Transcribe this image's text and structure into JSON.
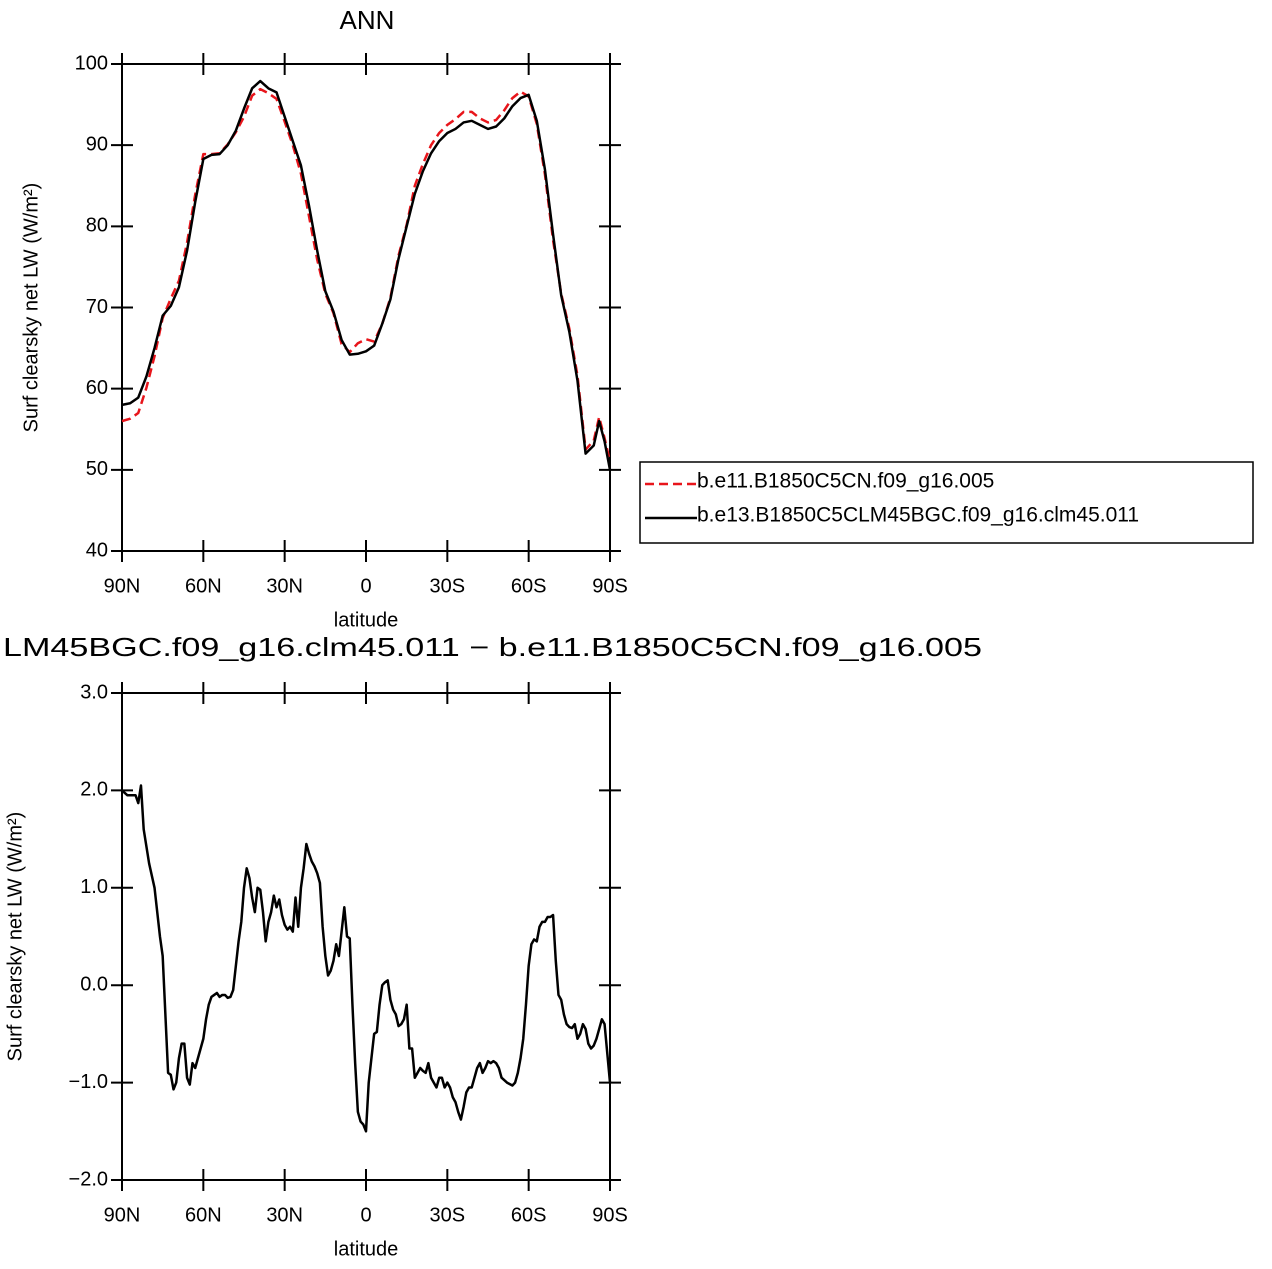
{
  "chart_data": [
    {
      "type": "line",
      "title": "ANN",
      "xlabel": "latitude",
      "ylabel": "Surf clearsky net LW (W/m²)",
      "x": [
        90,
        87,
        84,
        81,
        78,
        75,
        72,
        69,
        66,
        63,
        60,
        57,
        54,
        51,
        48,
        45,
        42,
        39,
        36,
        33,
        30,
        27,
        24,
        21,
        18,
        15,
        12,
        9,
        6,
        3,
        0,
        -3,
        -6,
        -9,
        -12,
        -15,
        -18,
        -21,
        -24,
        -27,
        -30,
        -33,
        -36,
        -39,
        -42,
        -45,
        -48,
        -51,
        -54,
        -57,
        -60,
        -63,
        -66,
        -69,
        -72,
        -75,
        -78,
        -81,
        -84,
        -86,
        -88,
        -90
      ],
      "series": [
        {
          "name": "b.e11.B1850C5CN.f09_g16.005",
          "color": "#e8151b",
          "linestyle": "dashed",
          "values": [
            56.0,
            56.3,
            57.0,
            60.1,
            64.0,
            68.7,
            71.1,
            73.3,
            78.0,
            83.9,
            88.9,
            88.9,
            89.0,
            90.1,
            91.6,
            93.5,
            96.1,
            96.9,
            96.4,
            95.7,
            92.9,
            90.0,
            86.5,
            81.2,
            75.9,
            71.7,
            69.3,
            65.5,
            64.5,
            65.6,
            66.1,
            65.8,
            68.0,
            71.2,
            76.4,
            80.2,
            85.0,
            87.7,
            90.0,
            91.5,
            92.5,
            93.2,
            94.1,
            94.1,
            93.3,
            92.8,
            93.1,
            94.3,
            95.8,
            96.6,
            96.0,
            92.6,
            86.4,
            78.3,
            71.7,
            67.4,
            61.6,
            52.5,
            53.6,
            56.5,
            53.9,
            51.0
          ]
        },
        {
          "name": "b.e13.B1850C5CLM45BGC.f09_g16.clm45.011",
          "color": "#000000",
          "linestyle": "solid",
          "values": [
            58.0,
            58.2,
            58.9,
            61.5,
            65.0,
            69.0,
            70.2,
            72.5,
            77.0,
            83.0,
            88.3,
            88.8,
            88.9,
            90.0,
            91.8,
            94.5,
            97.0,
            97.9,
            97.0,
            96.5,
            93.5,
            90.5,
            87.5,
            82.5,
            77.0,
            72.0,
            69.5,
            66.0,
            64.2,
            64.3,
            64.6,
            65.3,
            68.0,
            71.0,
            76.0,
            80.0,
            84.0,
            86.8,
            89.0,
            90.5,
            91.5,
            92.0,
            92.8,
            93.0,
            92.5,
            92.0,
            92.3,
            93.3,
            94.8,
            95.8,
            96.2,
            93.0,
            87.0,
            79.0,
            71.5,
            67.0,
            61.0,
            52.0,
            53.0,
            56.0,
            53.5,
            50.0
          ]
        }
      ],
      "xlim": [
        90,
        -90
      ],
      "xticks": [
        {
          "value": 90,
          "label": "90N"
        },
        {
          "value": 60,
          "label": "60N"
        },
        {
          "value": 30,
          "label": "30N"
        },
        0,
        {
          "value": -30,
          "label": "30S"
        },
        {
          "value": -60,
          "label": "60S"
        },
        {
          "value": -90,
          "label": "90S"
        }
      ],
      "ylim": [
        40,
        100
      ],
      "yticks": [
        40,
        50,
        60,
        70,
        80,
        90,
        100
      ],
      "legend": "right"
    },
    {
      "type": "line",
      "title": "LM45BGC.f09_g16.clm45.011 − b.e11.B1850C5CN.f09_g16.005",
      "xlabel": "latitude",
      "ylabel": "Surf clearsky net LW (W/m²)",
      "x": [
        90,
        88,
        86,
        85,
        84,
        83,
        82,
        80,
        78,
        76,
        75,
        74,
        73,
        72,
        71,
        70,
        69,
        68,
        67,
        66,
        65,
        64,
        63,
        62,
        61,
        60,
        59,
        58,
        57,
        56,
        55,
        54,
        53,
        52,
        51,
        50,
        49,
        48,
        47,
        46,
        45,
        44,
        43,
        42,
        41,
        40,
        39,
        38,
        37,
        36,
        35,
        34,
        33,
        32,
        31,
        30,
        29,
        28,
        27,
        26,
        25,
        24,
        23,
        22,
        21,
        20,
        19,
        18,
        17,
        16,
        15,
        14,
        13,
        12,
        11,
        10,
        9,
        8,
        7,
        6,
        5,
        4,
        3,
        2,
        1,
        0,
        -1,
        -2,
        -3,
        -4,
        -5,
        -6,
        -7,
        -8,
        -9,
        -10,
        -11,
        -12,
        -13,
        -14,
        -15,
        -16,
        -17,
        -18,
        -19,
        -20,
        -21,
        -22,
        -23,
        -24,
        -25,
        -26,
        -27,
        -28,
        -29,
        -30,
        -31,
        -32,
        -33,
        -34,
        -35,
        -36,
        -37,
        -38,
        -39,
        -40,
        -41,
        -42,
        -43,
        -44,
        -45,
        -46,
        -47,
        -48,
        -49,
        -50,
        -52,
        -54,
        -55,
        -56,
        -57,
        -58,
        -59,
        -60,
        -61,
        -62,
        -63,
        -64,
        -65,
        -66,
        -67,
        -68,
        -69,
        -70,
        -71,
        -72,
        -73,
        -74,
        -75,
        -76,
        -77,
        -78,
        -79,
        -80,
        -81,
        -82,
        -83,
        -84,
        -85,
        -86,
        -87,
        -88,
        -89,
        -90
      ],
      "series": [
        {
          "color": "#000000",
          "linestyle": "solid",
          "values": [
            2.0,
            1.95,
            1.95,
            1.95,
            1.87,
            2.05,
            1.6,
            1.25,
            1.0,
            0.5,
            0.3,
            -0.3,
            -0.9,
            -0.92,
            -1.07,
            -1.0,
            -0.75,
            -0.6,
            -0.6,
            -0.95,
            -1.02,
            -0.8,
            -0.85,
            -0.75,
            -0.65,
            -0.55,
            -0.35,
            -0.2,
            -0.12,
            -0.1,
            -0.08,
            -0.12,
            -0.1,
            -0.1,
            -0.13,
            -0.12,
            -0.05,
            0.2,
            0.45,
            0.65,
            1.0,
            1.2,
            1.1,
            0.9,
            0.75,
            1.0,
            0.98,
            0.75,
            0.45,
            0.65,
            0.75,
            0.92,
            0.8,
            0.88,
            0.72,
            0.62,
            0.57,
            0.6,
            0.55,
            0.9,
            0.6,
            1.0,
            1.2,
            1.45,
            1.35,
            1.27,
            1.22,
            1.15,
            1.05,
            0.6,
            0.3,
            0.1,
            0.15,
            0.25,
            0.42,
            0.3,
            0.55,
            0.8,
            0.5,
            0.48,
            -0.2,
            -0.8,
            -1.3,
            -1.4,
            -1.43,
            -1.5,
            -1.0,
            -0.75,
            -0.5,
            -0.48,
            -0.2,
            0.0,
            0.03,
            0.05,
            -0.15,
            -0.25,
            -0.3,
            -0.42,
            -0.4,
            -0.35,
            -0.2,
            -0.65,
            -0.65,
            -0.95,
            -0.9,
            -0.85,
            -0.88,
            -0.9,
            -0.8,
            -0.95,
            -1.0,
            -1.05,
            -0.95,
            -0.95,
            -1.05,
            -1.0,
            -1.05,
            -1.15,
            -1.2,
            -1.3,
            -1.38,
            -1.25,
            -1.1,
            -1.05,
            -1.05,
            -0.95,
            -0.85,
            -0.8,
            -0.9,
            -0.85,
            -0.78,
            -0.8,
            -0.78,
            -0.8,
            -0.85,
            -0.95,
            -1.0,
            -1.03,
            -1.0,
            -0.9,
            -0.75,
            -0.55,
            -0.2,
            0.2,
            0.42,
            0.47,
            0.45,
            0.6,
            0.65,
            0.65,
            0.7,
            0.7,
            0.72,
            0.25,
            -0.1,
            -0.15,
            -0.3,
            -0.4,
            -0.43,
            -0.44,
            -0.4,
            -0.55,
            -0.5,
            -0.4,
            -0.45,
            -0.6,
            -0.65,
            -0.62,
            -0.55,
            -0.45,
            -0.35,
            -0.4,
            -0.7,
            -1.0
          ]
        }
      ],
      "xlim": [
        90,
        -90
      ],
      "xticks": [
        {
          "value": 90,
          "label": "90N"
        },
        {
          "value": 60,
          "label": "60N"
        },
        {
          "value": 30,
          "label": "30N"
        },
        0,
        {
          "value": -30,
          "label": "30S"
        },
        {
          "value": -60,
          "label": "60S"
        },
        {
          "value": -90,
          "label": "90S"
        }
      ],
      "ylim": [
        -2,
        3
      ],
      "yticks": [
        {
          "value": -2,
          "label": "−2.0"
        },
        {
          "value": -1,
          "label": "−1.0"
        },
        {
          "value": 0,
          "label": "0.0"
        },
        {
          "value": 1,
          "label": "1.0"
        },
        {
          "value": 2,
          "label": "2.0"
        },
        {
          "value": 3,
          "label": "3.0"
        }
      ]
    }
  ]
}
